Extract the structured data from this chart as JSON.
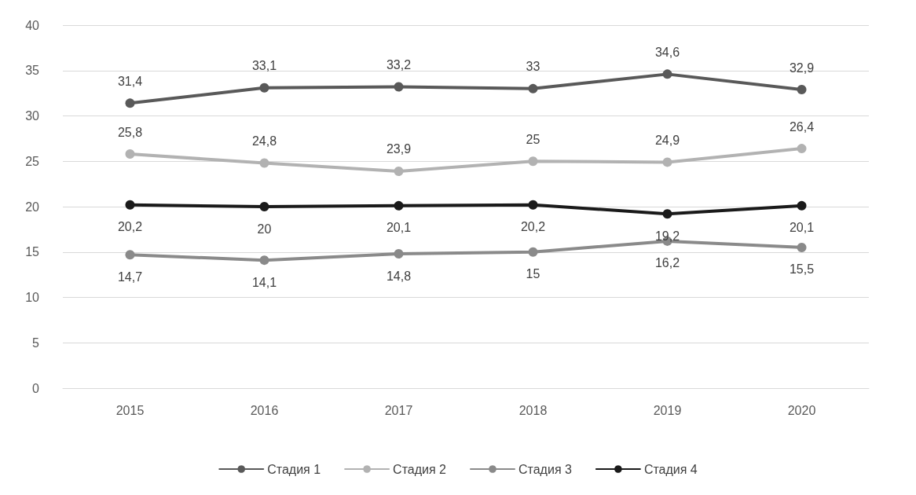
{
  "chart_data": {
    "type": "line",
    "categories": [
      "2015",
      "2016",
      "2017",
      "2018",
      "2019",
      "2020"
    ],
    "series": [
      {
        "name": "Стадия 1",
        "color": "#595959",
        "values": [
          31.4,
          33.1,
          33.2,
          33,
          34.6,
          32.9
        ],
        "value_labels": [
          "31,4",
          "33,1",
          "33,2",
          "33",
          "34,6",
          "32,9"
        ]
      },
      {
        "name": "Стадия 2",
        "color": "#b2b2b2",
        "values": [
          25.8,
          24.8,
          23.9,
          25,
          24.9,
          26.4
        ],
        "value_labels": [
          "25,8",
          "24,8",
          "23,9",
          "25",
          "24,9",
          "26,4"
        ]
      },
      {
        "name": "Стадия 3",
        "color": "#8a8a8a",
        "values": [
          14.7,
          14.1,
          14.8,
          15,
          16.2,
          15.5
        ],
        "value_labels": [
          "14,7",
          "14,1",
          "14,8",
          "15",
          "16,2",
          "15,5"
        ]
      },
      {
        "name": "Стадия 4",
        "color": "#1a1a1a",
        "values": [
          20.2,
          20,
          20.1,
          20.2,
          19.2,
          20.1
        ],
        "value_labels": [
          "20,2",
          "20",
          "20,1",
          "20,2",
          "19,2",
          "20,1"
        ]
      }
    ],
    "ylim": [
      0,
      40
    ],
    "yticks": [
      0,
      5,
      10,
      15,
      20,
      25,
      30,
      35,
      40
    ],
    "grid": "y",
    "legend": "bottom",
    "marker": "circle",
    "line_style": "solid"
  }
}
